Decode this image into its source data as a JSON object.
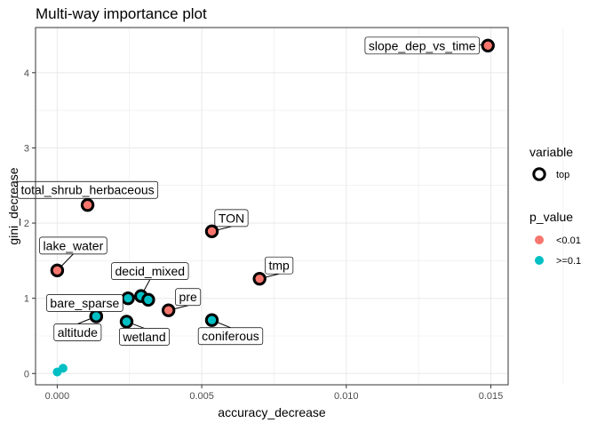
{
  "chart_data": {
    "type": "scatter",
    "title": "Multi-way importance plot",
    "xlabel": "accuracy_decrease",
    "ylabel": "gini_decrease",
    "xlim": [
      -0.00075,
      0.0156
    ],
    "ylim": [
      -0.15,
      4.6
    ],
    "x_ticks": [
      {
        "value": 0.0,
        "label": "0.000"
      },
      {
        "value": 0.005,
        "label": "0.005"
      },
      {
        "value": 0.01,
        "label": "0.010"
      },
      {
        "value": 0.015,
        "label": "0.015"
      }
    ],
    "y_ticks": [
      {
        "value": 0,
        "label": "0"
      },
      {
        "value": 1,
        "label": "1"
      },
      {
        "value": 2,
        "label": "2"
      },
      {
        "value": 3,
        "label": "3"
      },
      {
        "value": 4,
        "label": "4"
      }
    ],
    "grid": true,
    "colors": {
      "<0.01": "#f8766d",
      ">=0.1": "#00bfc4",
      "panel_border": "#333333",
      "grid": "#ebebeb",
      "text": "#000000",
      "axis_text": "#4d4d4d"
    },
    "points": [
      {
        "label": "slope_dep_vs_time",
        "x": 0.0149,
        "y": 4.36,
        "p_value": "<0.01",
        "top": true
      },
      {
        "label": "total_shrub_herbaceous",
        "x": 0.00105,
        "y": 2.24,
        "p_value": "<0.01",
        "top": true
      },
      {
        "label": "TON",
        "x": 0.00535,
        "y": 1.89,
        "p_value": "<0.01",
        "top": true
      },
      {
        "label": "lake_water",
        "x": 0.0,
        "y": 1.37,
        "p_value": "<0.01",
        "top": true
      },
      {
        "label": "tmp",
        "x": 0.007,
        "y": 1.26,
        "p_value": "<0.01",
        "top": true
      },
      {
        "label": "decid_mixed",
        "x": 0.0029,
        "y": 1.03,
        "p_value": ">=0.1",
        "top": true
      },
      {
        "label": "",
        "x": 0.00245,
        "y": 1.0,
        "p_value": ">=0.1",
        "top": true
      },
      {
        "label": "",
        "x": 0.00315,
        "y": 0.98,
        "p_value": ">=0.1",
        "top": true
      },
      {
        "label": "pre",
        "x": 0.00385,
        "y": 0.84,
        "p_value": "<0.01",
        "top": true
      },
      {
        "label": "bare_sparse",
        "x": 0.00135,
        "y": 0.76,
        "p_value": ">=0.1",
        "top": true
      },
      {
        "label": "altitude",
        "x": 0.00135,
        "y": 0.76,
        "p_value": ">=0.1",
        "top": true
      },
      {
        "label": "coniferous",
        "x": 0.00535,
        "y": 0.71,
        "p_value": ">=0.1",
        "top": true
      },
      {
        "label": "wetland",
        "x": 0.0024,
        "y": 0.69,
        "p_value": ">=0.1",
        "top": true
      },
      {
        "label": "",
        "x": 0.0,
        "y": 0.02,
        "p_value": ">=0.1",
        "top": false
      },
      {
        "label": "",
        "x": 0.0002,
        "y": 0.07,
        "p_value": ">=0.1",
        "top": false
      }
    ],
    "legend": {
      "position": "right",
      "variable_title": "variable",
      "variable_entries": [
        {
          "label": "top"
        }
      ],
      "p_value_title": "p_value",
      "p_value_entries": [
        {
          "label": "<0.01"
        },
        {
          "label": ">=0.1"
        }
      ]
    }
  }
}
